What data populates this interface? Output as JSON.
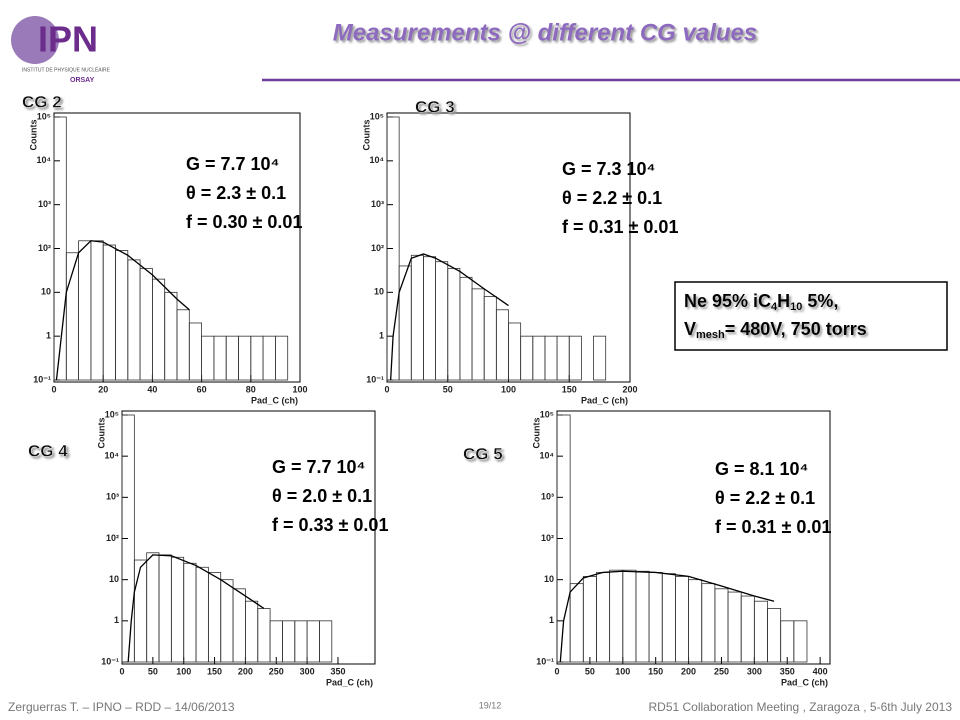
{
  "header": {
    "title": "Measurements @ different CG values",
    "logo": "IPN",
    "logo_sub": "INSTITUT DE PHYSIQUE NUCLÉAIRE",
    "logo_city": "ORSAY"
  },
  "box": {
    "line1": [
      "Ne 95% iC",
      "4",
      "H",
      "10",
      " 5%,"
    ],
    "line2": [
      "V",
      "mesh",
      "= 480V, 750 torrs"
    ]
  },
  "footer": {
    "left": "Zerguerras T. – IPNO – RDD – 14/06/2013",
    "page": "19/12",
    "right": "RD51 Collaboration Meeting , Zaragoza , 5-6th July 2013"
  },
  "chart_data": [
    {
      "type": "histogram",
      "label": "CG 2",
      "annotation": [
        "G = 7.7 10⁴",
        "θ = 2.3 ± 0.1",
        "f = 0.30 ± 0.01"
      ],
      "xlabel": "Pad_C (ch)",
      "ylabel": "Counts",
      "log_y": true,
      "color": "#333333",
      "xlim": [
        0,
        100
      ],
      "xticks": [
        0,
        20,
        40,
        60,
        80,
        100
      ],
      "ylim": [
        0.1,
        100000
      ],
      "yticks": [
        {
          "value": 0.1,
          "label": "10⁻¹"
        },
        1,
        10,
        {
          "value": 100,
          "label": "10²"
        },
        {
          "value": 1000,
          "label": "10³"
        },
        {
          "value": 10000,
          "label": "10⁴"
        },
        {
          "value": 100000,
          "label": "10⁵"
        }
      ],
      "bins": [
        0,
        5,
        10,
        15,
        20,
        25,
        30,
        35,
        40,
        45,
        50,
        55,
        60,
        65,
        70,
        75,
        80,
        85,
        90,
        95,
        100
      ],
      "values": [
        100000,
        80,
        150,
        150,
        120,
        90,
        55,
        35,
        20,
        10,
        4,
        2,
        1,
        1,
        1,
        1,
        1,
        1,
        1,
        0
      ],
      "fit": {
        "x": [
          1,
          3,
          5,
          10,
          15,
          20,
          30,
          40,
          50,
          55
        ],
        "values": [
          0.1,
          1,
          10,
          80,
          150,
          140,
          70,
          25,
          7,
          4
        ]
      }
    },
    {
      "type": "histogram",
      "label": "CG 3",
      "annotation": [
        "G = 7.3 10⁴",
        "θ = 2.2 ± 0.1",
        "f = 0.31 ± 0.01"
      ],
      "xlabel": "Pad_C (ch)",
      "ylabel": "Counts",
      "log_y": true,
      "color": "#333333",
      "xlim": [
        0,
        200
      ],
      "xticks": [
        0,
        50,
        100,
        150,
        200
      ],
      "ylim": [
        0.1,
        100000
      ],
      "yticks": [
        {
          "value": 0.1,
          "label": "10⁻¹"
        },
        1,
        10,
        {
          "value": 100,
          "label": "10²"
        },
        {
          "value": 1000,
          "label": "10³"
        },
        {
          "value": 10000,
          "label": "10⁴"
        },
        {
          "value": 100000,
          "label": "10⁵"
        }
      ],
      "bins": [
        0,
        10,
        20,
        30,
        40,
        50,
        60,
        70,
        80,
        90,
        100,
        110,
        120,
        130,
        140,
        150,
        160,
        170,
        180,
        190,
        200
      ],
      "values": [
        100000,
        40,
        70,
        65,
        50,
        35,
        22,
        12,
        8,
        4,
        2,
        1,
        1,
        1,
        1,
        1,
        0,
        1,
        0,
        0
      ],
      "fit": {
        "x": [
          3,
          5,
          10,
          20,
          30,
          40,
          60,
          80,
          100
        ],
        "values": [
          0.1,
          1,
          10,
          60,
          75,
          60,
          30,
          12,
          5
        ]
      }
    },
    {
      "type": "histogram",
      "label": "CG 4",
      "annotation": [
        "G = 7.7 10⁴",
        "θ = 2.0 ± 0.1",
        "f = 0.33 ± 0.01"
      ],
      "xlabel": "Pad_C (ch)",
      "ylabel": "Counts",
      "log_y": true,
      "color": "#333333",
      "xlim": [
        0,
        410
      ],
      "xticks": [
        0,
        50,
        100,
        150,
        200,
        250,
        300,
        350
      ],
      "ylim": [
        0.1,
        100000
      ],
      "yticks": [
        {
          "value": 0.1,
          "label": "10⁻¹"
        },
        1,
        10,
        {
          "value": 100,
          "label": "10²"
        },
        {
          "value": 1000,
          "label": "10³"
        },
        {
          "value": 10000,
          "label": "10⁴"
        },
        {
          "value": 100000,
          "label": "10⁵"
        }
      ],
      "bins": [
        0,
        20,
        40,
        60,
        80,
        100,
        120,
        140,
        160,
        180,
        200,
        220,
        240,
        260,
        280,
        300,
        320,
        340,
        360,
        380,
        400
      ],
      "values": [
        100000,
        30,
        45,
        40,
        35,
        25,
        20,
        15,
        10,
        6,
        3,
        2,
        1,
        1,
        1,
        1,
        1,
        0,
        0,
        0
      ],
      "fit": {
        "x": [
          10,
          15,
          20,
          30,
          50,
          80,
          120,
          160,
          200,
          230
        ],
        "values": [
          0.1,
          1,
          5,
          20,
          40,
          38,
          22,
          10,
          4,
          2
        ]
      }
    },
    {
      "type": "histogram",
      "label": "CG 5",
      "annotation": [
        "G = 8.1 10⁴",
        "θ = 2.2 ± 0.1",
        "f = 0.31 ± 0.01"
      ],
      "xlabel": "Pad_C (ch)",
      "ylabel": "Counts",
      "log_y": true,
      "color": "#333333",
      "xlim": [
        0,
        415
      ],
      "xticks": [
        0,
        50,
        100,
        150,
        200,
        250,
        300,
        350,
        400
      ],
      "ylim": [
        0.1,
        100000
      ],
      "yticks": [
        {
          "value": 0.1,
          "label": "10⁻¹"
        },
        1,
        10,
        {
          "value": 100,
          "label": "10²"
        },
        {
          "value": 1000,
          "label": "10³"
        },
        {
          "value": 10000,
          "label": "10⁴"
        },
        {
          "value": 100000,
          "label": "10⁵"
        }
      ],
      "bins": [
        0,
        20,
        40,
        60,
        80,
        100,
        120,
        140,
        160,
        180,
        200,
        220,
        240,
        260,
        280,
        300,
        320,
        340,
        360,
        380,
        400
      ],
      "values": [
        100000,
        8,
        12,
        15,
        17,
        17,
        16,
        15,
        14,
        12,
        10,
        8,
        6,
        5,
        4,
        3,
        2,
        1,
        1,
        0
      ],
      "fit": {
        "x": [
          5,
          10,
          20,
          40,
          70,
          100,
          150,
          200,
          250,
          300,
          330
        ],
        "values": [
          0.1,
          1,
          5,
          11,
          15,
          16,
          15,
          12,
          7,
          4,
          3
        ]
      }
    }
  ]
}
